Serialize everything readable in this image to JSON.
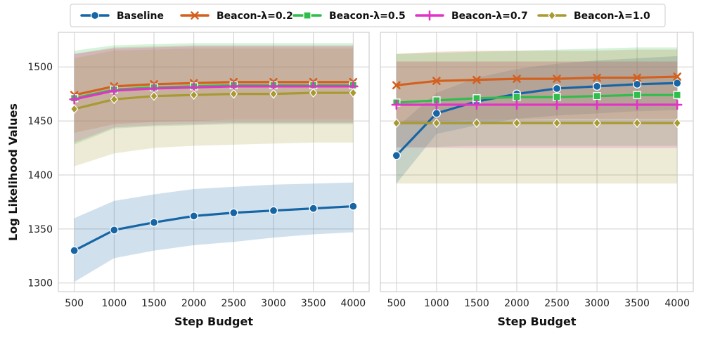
{
  "chart_data": {
    "type": "line",
    "legend": {
      "placement": "top-center"
    },
    "series_styles": [
      {
        "name": "Baseline",
        "color": "#1665a5",
        "marker": "circle"
      },
      {
        "name": "Beacon-λ=0.2",
        "color": "#d4601e",
        "marker": "x"
      },
      {
        "name": "Beacon-λ=0.5",
        "color": "#2fbd4c",
        "marker": "square"
      },
      {
        "name": "Beacon-λ=0.7",
        "color": "#e034c6",
        "marker": "plus"
      },
      {
        "name": "Beacon-λ=1.0",
        "color": "#a79a32",
        "marker": "diamond"
      }
    ],
    "x_ticks": [
      "500",
      "1000",
      "1500",
      "2000",
      "2500",
      "3000",
      "3500",
      "4000"
    ],
    "y_ticks": [
      "1300",
      "1350",
      "1400",
      "1450",
      "1500"
    ],
    "xlim": [
      300,
      4200
    ],
    "ylim": [
      1292,
      1532
    ],
    "ylabel": "Log Likelihood Values",
    "panels": [
      {
        "xlabel": "Step Budget",
        "show_y_ticks": true,
        "x": [
          500,
          1000,
          1500,
          2000,
          2500,
          3000,
          3500,
          4000
        ],
        "series": [
          {
            "name": "Baseline",
            "values": [
              1330,
              1349,
              1356,
              1362,
              1365,
              1367,
              1369,
              1371
            ],
            "lower": [
              1301,
              1323,
              1330,
              1335,
              1338,
              1342,
              1345,
              1347
            ],
            "upper": [
              1360,
              1376,
              1382,
              1387,
              1389,
              1391,
              1392,
              1393
            ]
          },
          {
            "name": "Beacon-λ=0.2",
            "values": [
              1474,
              1482,
              1484,
              1485,
              1486,
              1486,
              1486,
              1486
            ],
            "lower": [
              1439,
              1447,
              1449,
              1450,
              1451,
              1451,
              1451,
              1451
            ],
            "upper": [
              1512,
              1518,
              1519,
              1520,
              1520,
              1520,
              1520,
              1520
            ]
          },
          {
            "name": "Beacon-λ=0.5",
            "values": [
              1471,
              1479,
              1481,
              1482,
              1483,
              1483,
              1483,
              1483
            ],
            "lower": [
              1428,
              1443,
              1445,
              1446,
              1447,
              1447,
              1447,
              1447
            ],
            "upper": [
              1515,
              1520,
              1521,
              1522,
              1522,
              1522,
              1522,
              1522
            ]
          },
          {
            "name": "Beacon-λ=0.7",
            "values": [
              1470,
              1478,
              1480,
              1481,
              1482,
              1482,
              1482,
              1482
            ],
            "lower": [
              1430,
              1444,
              1446,
              1447,
              1448,
              1448,
              1448,
              1448
            ],
            "upper": [
              1512,
              1517,
              1518,
              1519,
              1519,
              1519,
              1519,
              1519
            ]
          },
          {
            "name": "Beacon-λ=1.0",
            "values": [
              1461,
              1470,
              1473,
              1474,
              1475,
              1475,
              1476,
              1476
            ],
            "lower": [
              1408,
              1420,
              1425,
              1427,
              1428,
              1429,
              1430,
              1430
            ],
            "upper": [
              1508,
              1515,
              1516,
              1517,
              1517,
              1517,
              1517,
              1517
            ]
          }
        ]
      },
      {
        "xlabel": "Step Budget",
        "show_y_ticks": false,
        "x": [
          500,
          1000,
          1500,
          2000,
          2500,
          3000,
          3500,
          4000
        ],
        "series": [
          {
            "name": "Baseline",
            "values": [
              1418,
              1457,
              1468,
              1475,
              1480,
              1482,
              1484,
              1485
            ],
            "lower": [
              1392,
              1438,
              1446,
              1452,
              1455,
              1457,
              1459,
              1460
            ],
            "upper": [
              1444,
              1476,
              1490,
              1498,
              1503,
              1506,
              1508,
              1510
            ]
          },
          {
            "name": "Beacon-λ=0.2",
            "values": [
              1483,
              1487,
              1488,
              1489,
              1489,
              1490,
              1490,
              1491
            ],
            "lower": [
              1448,
              1450,
              1451,
              1451,
              1452,
              1452,
              1452,
              1452
            ],
            "upper": [
              1512,
              1514,
              1515,
              1515,
              1515,
              1515,
              1516,
              1516
            ]
          },
          {
            "name": "Beacon-λ=0.5",
            "values": [
              1467,
              1469,
              1471,
              1472,
              1472,
              1473,
              1474,
              1474
            ],
            "lower": [
              1426,
              1426,
              1427,
              1427,
              1427,
              1427,
              1427,
              1427
            ],
            "upper": [
              1512,
              1513,
              1514,
              1515,
              1516,
              1517,
              1518,
              1518
            ]
          },
          {
            "name": "Beacon-λ=0.7",
            "values": [
              1465,
              1465,
              1465,
              1465,
              1465,
              1465,
              1465,
              1465
            ],
            "lower": [
              1425,
              1425,
              1425,
              1425,
              1425,
              1425,
              1425,
              1425
            ],
            "upper": [
              1505,
              1505,
              1505,
              1505,
              1505,
              1505,
              1505,
              1505
            ]
          },
          {
            "name": "Beacon-λ=1.0",
            "values": [
              1448,
              1448,
              1448,
              1448,
              1448,
              1448,
              1448,
              1448
            ],
            "lower": [
              1392,
              1392,
              1392,
              1392,
              1392,
              1392,
              1392,
              1392
            ],
            "upper": [
              1505,
              1505,
              1505,
              1505,
              1505,
              1505,
              1505,
              1505
            ]
          }
        ]
      }
    ]
  }
}
